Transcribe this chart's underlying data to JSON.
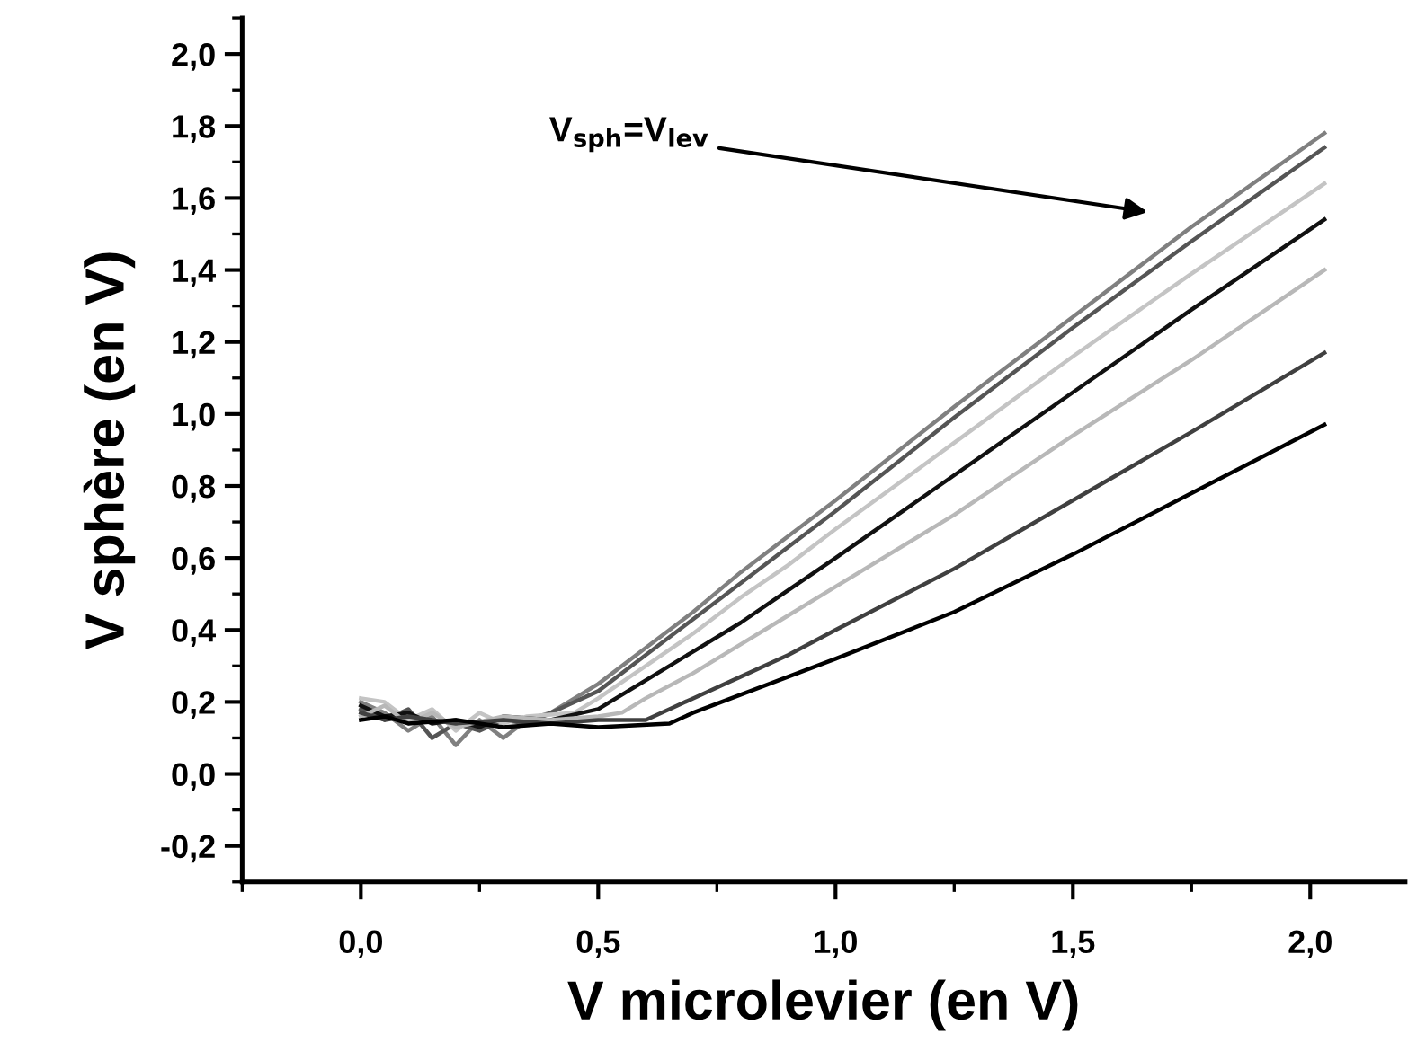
{
  "chart_data": {
    "type": "line",
    "xlabel": "V microlevier (en V)",
    "ylabel": "V sphère (en V)",
    "xlim": [
      -0.25,
      2.2
    ],
    "ylim": [
      -0.3,
      2.1
    ],
    "xticks": [
      {
        "value": 0,
        "label": "0,0"
      },
      {
        "value": 0.5,
        "label": "0,5"
      },
      {
        "value": 1,
        "label": "1,0"
      },
      {
        "value": 1.5,
        "label": "1,5"
      },
      {
        "value": 2,
        "label": "2,0"
      }
    ],
    "yticks": [
      {
        "value": -0.2,
        "label": "-0,2"
      },
      {
        "value": 0,
        "label": "0,0"
      },
      {
        "value": 0.2,
        "label": "0,2"
      },
      {
        "value": 0.4,
        "label": "0,4"
      },
      {
        "value": 0.6,
        "label": "0,6"
      },
      {
        "value": 0.8,
        "label": "0,8"
      },
      {
        "value": 1,
        "label": "1,0"
      },
      {
        "value": 1.2,
        "label": "1,2"
      },
      {
        "value": 1.4,
        "label": "1,4"
      },
      {
        "value": 1.6,
        "label": "1,6"
      },
      {
        "value": 1.8,
        "label": "1,8"
      },
      {
        "value": 2,
        "label": "2,0"
      }
    ],
    "grid": false,
    "marker": "none",
    "line_style": "solid",
    "annotations": [
      "V$_{sph}$=V$_{lev}$"
    ],
    "series": [
      {
        "color": "#808080",
        "x": [
          0,
          0.05,
          0.1,
          0.15,
          0.2,
          0.25,
          0.3,
          0.35,
          0.4,
          0.5,
          0.6,
          0.7,
          0.8,
          0.9,
          1.0,
          1.25,
          1.5,
          1.75,
          2.03
        ],
        "values": [
          0.2,
          0.17,
          0.12,
          0.16,
          0.08,
          0.15,
          0.1,
          0.15,
          0.17,
          0.25,
          0.35,
          0.45,
          0.56,
          0.66,
          0.76,
          1.02,
          1.27,
          1.52,
          1.78
        ]
      },
      {
        "color": "#555555",
        "x": [
          0,
          0.05,
          0.1,
          0.15,
          0.2,
          0.25,
          0.3,
          0.35,
          0.4,
          0.5,
          0.6,
          0.7,
          0.8,
          0.9,
          1.0,
          1.25,
          1.5,
          1.75,
          2.03
        ],
        "values": [
          0.18,
          0.15,
          0.18,
          0.1,
          0.14,
          0.12,
          0.15,
          0.14,
          0.17,
          0.23,
          0.33,
          0.43,
          0.53,
          0.63,
          0.73,
          0.99,
          1.24,
          1.48,
          1.74
        ]
      },
      {
        "color": "#c4c4c4",
        "x": [
          0,
          0.05,
          0.1,
          0.15,
          0.2,
          0.25,
          0.3,
          0.35,
          0.45,
          0.5,
          0.6,
          0.7,
          0.8,
          0.9,
          1.0,
          1.25,
          1.5,
          1.75,
          2.03
        ],
        "values": [
          0.21,
          0.2,
          0.15,
          0.18,
          0.12,
          0.17,
          0.14,
          0.16,
          0.17,
          0.21,
          0.3,
          0.39,
          0.49,
          0.58,
          0.68,
          0.92,
          1.16,
          1.39,
          1.64
        ]
      },
      {
        "color": "#111111",
        "x": [
          0,
          0.05,
          0.1,
          0.15,
          0.2,
          0.25,
          0.3,
          0.4,
          0.5,
          0.6,
          0.7,
          0.8,
          0.9,
          1.0,
          1.25,
          1.5,
          1.75,
          2.03
        ],
        "values": [
          0.19,
          0.16,
          0.17,
          0.14,
          0.15,
          0.13,
          0.16,
          0.15,
          0.18,
          0.26,
          0.34,
          0.42,
          0.51,
          0.6,
          0.83,
          1.06,
          1.29,
          1.54
        ]
      },
      {
        "color": "#b8b8b8",
        "x": [
          0,
          0.05,
          0.1,
          0.15,
          0.2,
          0.3,
          0.4,
          0.5,
          0.55,
          0.6,
          0.7,
          0.8,
          0.9,
          1.0,
          1.25,
          1.5,
          1.75,
          2.03
        ],
        "values": [
          0.16,
          0.19,
          0.14,
          0.17,
          0.13,
          0.16,
          0.15,
          0.16,
          0.17,
          0.21,
          0.28,
          0.36,
          0.44,
          0.52,
          0.72,
          0.94,
          1.15,
          1.4
        ]
      },
      {
        "color": "#404040",
        "x": [
          0,
          0.05,
          0.1,
          0.2,
          0.3,
          0.4,
          0.5,
          0.6,
          0.65,
          0.7,
          0.8,
          0.9,
          1.0,
          1.25,
          1.5,
          1.75,
          2.03
        ],
        "values": [
          0.17,
          0.15,
          0.16,
          0.14,
          0.15,
          0.14,
          0.15,
          0.15,
          0.18,
          0.21,
          0.27,
          0.33,
          0.4,
          0.57,
          0.76,
          0.95,
          1.17
        ]
      },
      {
        "color": "#000000",
        "x": [
          0,
          0.05,
          0.1,
          0.2,
          0.3,
          0.4,
          0.5,
          0.65,
          0.7,
          0.8,
          0.9,
          1.0,
          1.25,
          1.5,
          1.75,
          2.03
        ],
        "values": [
          0.15,
          0.16,
          0.14,
          0.15,
          0.13,
          0.14,
          0.13,
          0.14,
          0.17,
          0.22,
          0.27,
          0.32,
          0.45,
          0.61,
          0.78,
          0.97
        ]
      }
    ]
  }
}
